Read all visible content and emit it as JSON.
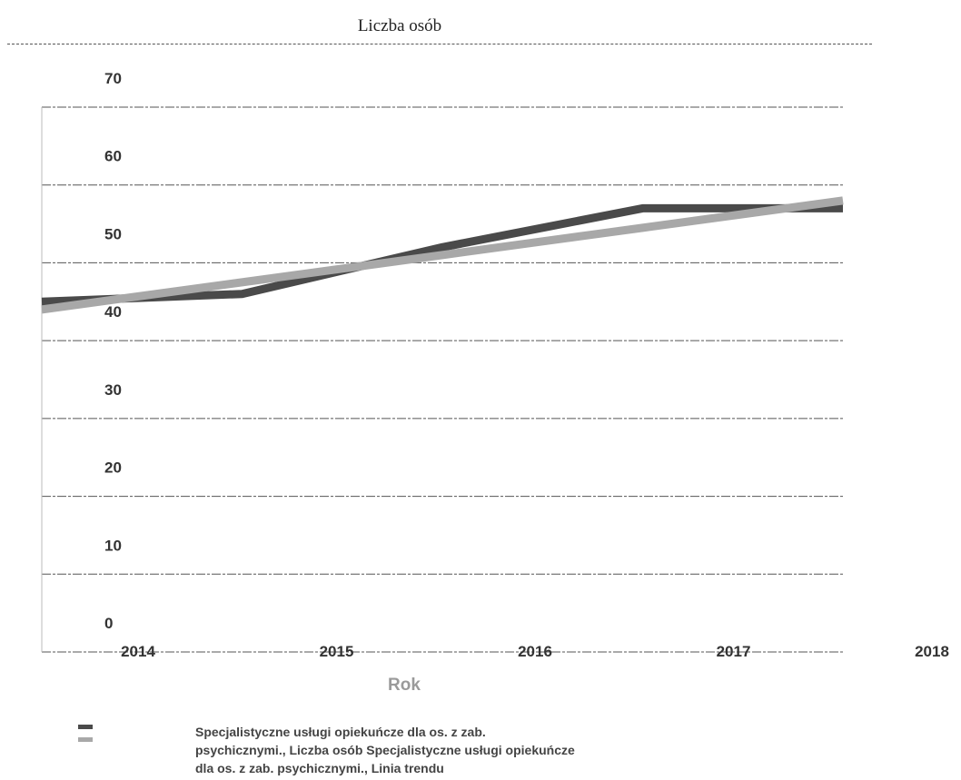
{
  "chart_data": {
    "type": "line",
    "title": "Liczba osób",
    "xlabel": "Rok",
    "ylabel": "",
    "x_ticks": [
      "2014",
      "2015",
      "2016",
      "2017",
      "2018"
    ],
    "y_ticks": [
      "0",
      "10",
      "20",
      "30",
      "40",
      "50",
      "60",
      "70"
    ],
    "ylim": [
      0,
      70
    ],
    "grid": true,
    "legend_placement": "bottom-left",
    "legend_text": "Specjalistyczne usługi opiekuńcze dla os. z zab. psychicznymi., Liczba osób Specjalistyczne usługi opiekuńcze dla os. z zab. psychicznymi., Linia trendu",
    "series": [
      {
        "color": "#4a4a4a",
        "x": [
          2014,
          2015,
          2016,
          2017,
          2018
        ],
        "values": [
          45,
          46,
          52,
          57,
          57
        ]
      },
      {
        "color": "#a8a8a8",
        "x": [
          2014,
          2015,
          2016,
          2017,
          2018
        ],
        "values": [
          44,
          47.5,
          51,
          54.5,
          58
        ]
      }
    ]
  }
}
